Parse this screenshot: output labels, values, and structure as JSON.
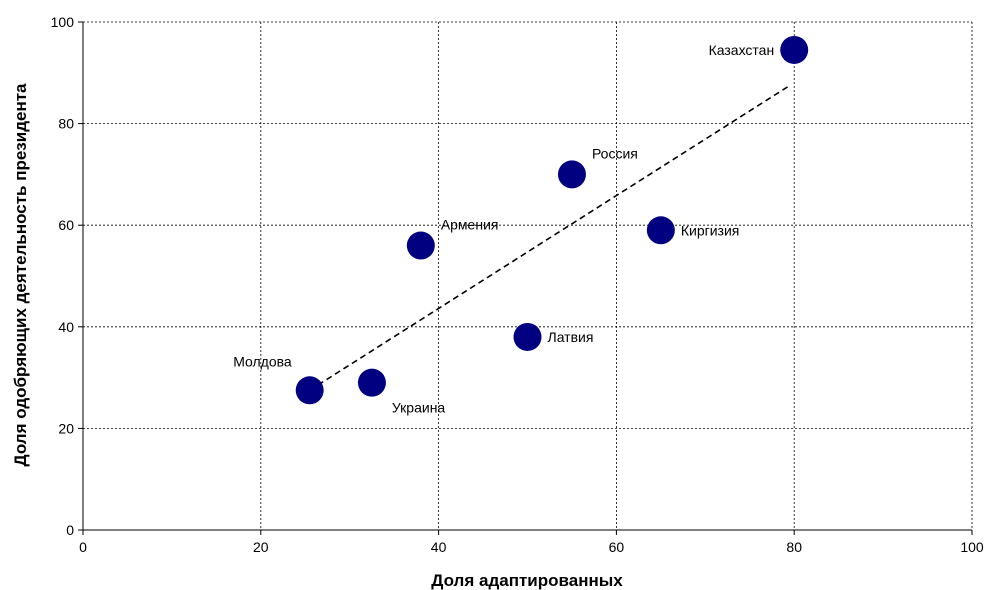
{
  "chart_data": {
    "type": "scatter",
    "xlabel": "Доля адаптированных",
    "ylabel": "Доля одобряющих деятельность президента",
    "xlim": [
      0,
      100
    ],
    "ylim": [
      0,
      100
    ],
    "x_ticks": [
      "0",
      "20",
      "40",
      "60",
      "80",
      "100"
    ],
    "y_ticks": [
      "0",
      "20",
      "40",
      "60",
      "80",
      "100"
    ],
    "grid": true,
    "grid_style": "dashed",
    "point_color": "#000080",
    "points": [
      {
        "label": "Молдова",
        "x": 25.5,
        "y": 27.5,
        "label_pos": "above-left"
      },
      {
        "label": "Украина",
        "x": 32.5,
        "y": 29,
        "label_pos": "below-right"
      },
      {
        "label": "Армения",
        "x": 38,
        "y": 56,
        "label_pos": "above-right"
      },
      {
        "label": "Латвия",
        "x": 50,
        "y": 38,
        "label_pos": "right"
      },
      {
        "label": "Россия",
        "x": 55,
        "y": 70,
        "label_pos": "above-right"
      },
      {
        "label": "Киргизия",
        "x": 65,
        "y": 59,
        "label_pos": "right"
      },
      {
        "label": "Казахстан",
        "x": 80,
        "y": 94.5,
        "label_pos": "left"
      }
    ],
    "trendline": {
      "style": "dashed",
      "from": {
        "x": 25.5,
        "y": 27.5
      },
      "to": {
        "x": 79.5,
        "y": 87.5
      }
    }
  }
}
